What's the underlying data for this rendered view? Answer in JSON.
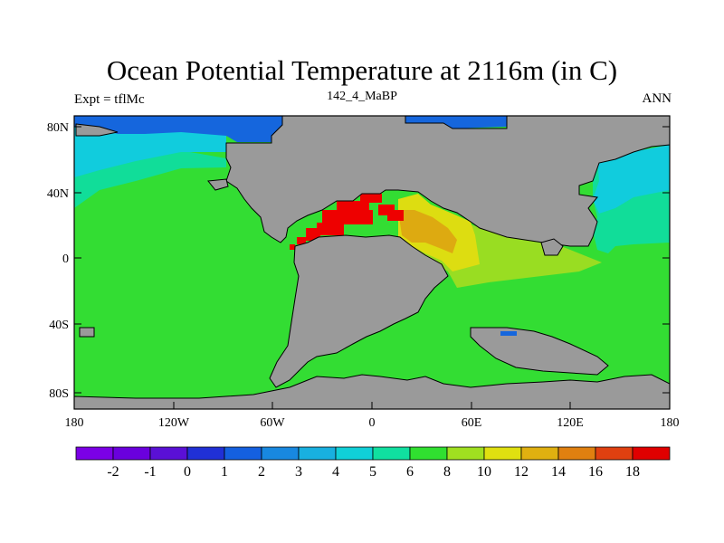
{
  "title": "Ocean Potential Temperature at 2116m (in C)",
  "subtitle_left": "Expt = tflMc",
  "subtitle_center": "142_4_MaBP",
  "subtitle_right": "ANN",
  "lat_labels": [
    "80N",
    "40N",
    "0",
    "40S",
    "80S"
  ],
  "lon_labels": [
    "180",
    "120W",
    "60W",
    "0",
    "60E",
    "120E",
    "180"
  ],
  "colorbar": {
    "colors": [
      "#7b00e6",
      "#6a00dd",
      "#5a10d6",
      "#2030d6",
      "#1460e0",
      "#1888e0",
      "#18b0e0",
      "#10d0d8",
      "#10e0a0",
      "#30e030",
      "#a0e020",
      "#e0e010",
      "#e0b010",
      "#e08010",
      "#e04010",
      "#e00000"
    ],
    "labels": [
      "-2",
      "-1",
      "0",
      "1",
      "2",
      "3",
      "4",
      "5",
      "6",
      "8",
      "10",
      "12",
      "14",
      "16",
      "18"
    ]
  },
  "colors": {
    "land": "#9a9a9a",
    "ocean_main": "#33dd33",
    "ocean_teal": "#11dd99",
    "ocean_cyan": "#11ccdd",
    "ocean_blue": "#1566dd",
    "warm_lime": "#99dd22",
    "warm_yellow": "#dddd11",
    "warm_orange": "#ddaa11",
    "warm_red": "#ee0000"
  }
}
